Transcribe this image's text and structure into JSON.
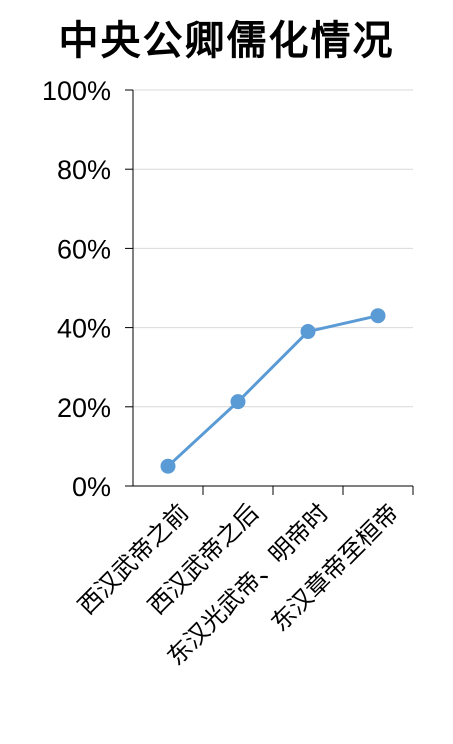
{
  "chart_data": {
    "type": "line",
    "title": "中央公卿儒化情况",
    "categories": [
      "西汉武帝之前",
      "西汉武帝之后",
      "东汉光武帝、明帝时",
      "东汉章帝至桓帝"
    ],
    "series": [
      {
        "values": [
          5,
          21.3,
          39,
          43
        ]
      }
    ],
    "y_ticks": [
      "0%",
      "20%",
      "40%",
      "60%",
      "80%",
      "100%"
    ],
    "ylim": [
      0,
      100
    ],
    "grid": true,
    "line_color": "#5b9bd5",
    "grid_color": "#d9d9d9",
    "axis_color": "#000000"
  }
}
